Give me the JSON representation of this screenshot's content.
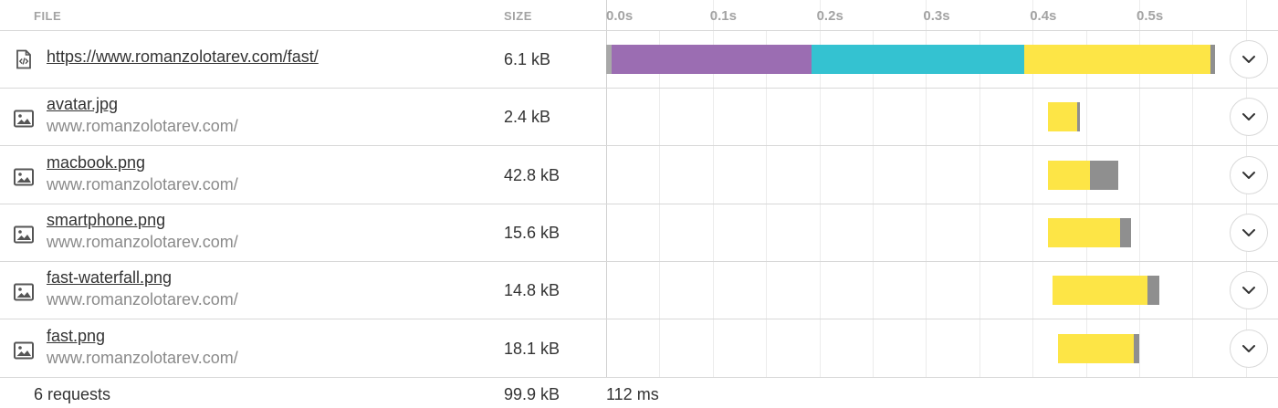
{
  "header": {
    "file_label": "FILE",
    "size_label": "SIZE",
    "ticks": [
      {
        "label": "0.0s",
        "t": 0.0
      },
      {
        "label": "0.1s",
        "t": 0.1
      },
      {
        "label": "0.2s",
        "t": 0.2
      },
      {
        "label": "0.3s",
        "t": 0.3
      },
      {
        "label": "0.4s",
        "t": 0.4
      },
      {
        "label": "0.5s",
        "t": 0.5
      }
    ]
  },
  "colors": {
    "blocked": "#a8a8a8",
    "dns": "#9b6db2",
    "connect": "#34c2d1",
    "wait": "#fde546",
    "receive": "#8f8f8f",
    "bar_border": "#cfc04a"
  },
  "rows": [
    {
      "icon": "html-document-icon",
      "name": "https://www.romanzolotarev.com/fast/",
      "host": "",
      "size": "6.1 kB",
      "segments": [
        {
          "type": "blocked",
          "start": 0.0,
          "end": 0.005
        },
        {
          "type": "dns",
          "start": 0.005,
          "end": 0.193
        },
        {
          "type": "connect",
          "start": 0.193,
          "end": 0.392
        },
        {
          "type": "wait",
          "start": 0.392,
          "end": 0.567
        },
        {
          "type": "receive",
          "start": 0.567,
          "end": 0.571
        }
      ]
    },
    {
      "icon": "image-file-icon",
      "name": "avatar.jpg",
      "host": "www.romanzolotarev.com/",
      "size": "2.4 kB",
      "segments": [
        {
          "type": "wait",
          "start": 0.414,
          "end": 0.442
        },
        {
          "type": "receive",
          "start": 0.442,
          "end": 0.444
        }
      ]
    },
    {
      "icon": "image-file-icon",
      "name": "macbook.png",
      "host": "www.romanzolotarev.com/",
      "size": "42.8 kB",
      "segments": [
        {
          "type": "wait",
          "start": 0.414,
          "end": 0.454
        },
        {
          "type": "receive",
          "start": 0.454,
          "end": 0.48
        }
      ]
    },
    {
      "icon": "image-file-icon",
      "name": "smartphone.png",
      "host": "www.romanzolotarev.com/",
      "size": "15.6 kB",
      "segments": [
        {
          "type": "wait",
          "start": 0.414,
          "end": 0.482
        },
        {
          "type": "receive",
          "start": 0.482,
          "end": 0.492
        }
      ]
    },
    {
      "icon": "image-file-icon",
      "name": "fast-waterfall.png",
      "host": "www.romanzolotarev.com/",
      "size": "14.8 kB",
      "segments": [
        {
          "type": "wait",
          "start": 0.419,
          "end": 0.508
        },
        {
          "type": "receive",
          "start": 0.508,
          "end": 0.519
        }
      ]
    },
    {
      "icon": "image-file-icon",
      "name": "fast.png",
      "host": "www.romanzolotarev.com/",
      "size": "18.1 kB",
      "segments": [
        {
          "type": "wait",
          "start": 0.424,
          "end": 0.495
        },
        {
          "type": "receive",
          "start": 0.495,
          "end": 0.5
        }
      ]
    }
  ],
  "footer": {
    "requests": "6 requests",
    "total_size": "99.9 kB",
    "time": "112 ms"
  }
}
